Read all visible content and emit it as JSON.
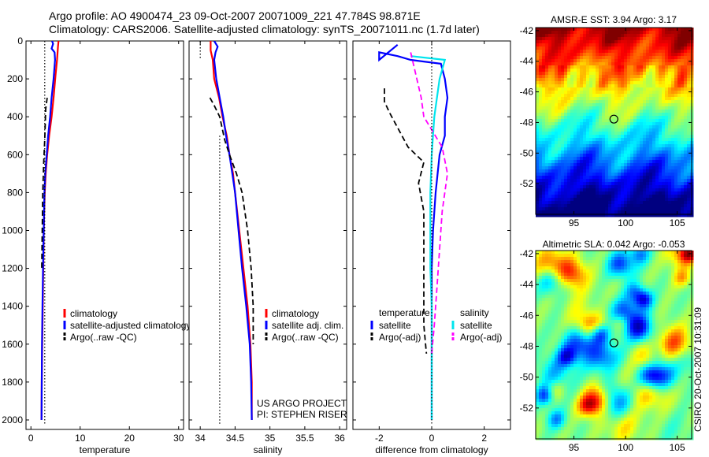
{
  "header": {
    "title_line1": "Argo profile: AO 4900474_23 09-Oct-2007 20071009_221 47.784S 98.871E",
    "title_line2": "Climatology: CARS2006. Satellite-adjusted climatology: synTS_20071011.nc (1.7d later)"
  },
  "footer": {
    "credit": "CSIRO 20-Oct-2007 10:31:09"
  },
  "colors": {
    "climatology": "#ff0000",
    "satellite": "#0000ff",
    "argo": "#000000",
    "satellite_diff_salinity": "#00e5ee",
    "argo_diff_salinity": "#ff00ff"
  },
  "chart_data": [
    {
      "type": "line",
      "id": "temperature",
      "xlabel": "temperature",
      "ylabel": "",
      "xlim": [
        -1,
        31
      ],
      "ylim": [
        2050,
        0
      ],
      "xticks": [
        0,
        10,
        20,
        30
      ],
      "yticks": [
        0,
        200,
        400,
        600,
        800,
        1000,
        1200,
        1400,
        1600,
        1800,
        2000
      ],
      "y_reversed": true,
      "legend": [
        "climatology",
        "satellite-adjusted climatology",
        "Argo(..raw -QC)"
      ],
      "legend_position": "lower-right",
      "series": [
        {
          "name": "climatology",
          "color": "#ff0000",
          "style": "solid",
          "points": [
            [
              5.6,
              0
            ],
            [
              5.5,
              30
            ],
            [
              5.3,
              100
            ],
            [
              5.0,
              180
            ],
            [
              4.6,
              300
            ],
            [
              4.2,
              400
            ],
            [
              3.7,
              500
            ],
            [
              3.3,
              600
            ],
            [
              3.0,
              700
            ],
            [
              2.8,
              800
            ],
            [
              2.6,
              1000
            ],
            [
              2.5,
              1200
            ],
            [
              2.4,
              1400
            ],
            [
              2.3,
              1600
            ],
            [
              2.2,
              1800
            ],
            [
              2.15,
              2000
            ]
          ]
        },
        {
          "name": "satellite-adjusted climatology",
          "color": "#0000ff",
          "style": "solid",
          "points": [
            [
              4.3,
              0
            ],
            [
              4.5,
              15
            ],
            [
              4.2,
              40
            ],
            [
              4.8,
              60
            ],
            [
              4.9,
              100
            ],
            [
              4.6,
              200
            ],
            [
              4.2,
              300
            ],
            [
              3.9,
              400
            ],
            [
              3.5,
              500
            ],
            [
              3.2,
              600
            ],
            [
              2.9,
              700
            ],
            [
              2.75,
              800
            ],
            [
              2.6,
              1000
            ],
            [
              2.45,
              1200
            ],
            [
              2.35,
              1400
            ],
            [
              2.25,
              1600
            ],
            [
              2.2,
              1800
            ],
            [
              2.15,
              2000
            ]
          ]
        },
        {
          "name": "Argo(..raw -QC)",
          "color": "#000000",
          "style": "dashed",
          "points": [
            [
              3.3,
              300
            ],
            [
              3.0,
              360
            ],
            [
              2.9,
              440
            ],
            [
              2.8,
              520
            ],
            [
              2.6,
              640
            ],
            [
              2.4,
              800
            ],
            [
              2.3,
              1000
            ],
            [
              2.2,
              1200
            ]
          ]
        },
        {
          "name": "",
          "color": "#000000",
          "style": "dotted",
          "points": [
            [
              2.8,
              0
            ],
            [
              2.8,
              2020
            ]
          ]
        }
      ]
    },
    {
      "type": "line",
      "id": "salinity",
      "xlabel": "salinity",
      "ylabel": "",
      "xlim": [
        33.84,
        36.1
      ],
      "ylim": [
        2050,
        0
      ],
      "xticks": [
        34,
        34.5,
        35,
        35.5,
        36
      ],
      "y_reversed": true,
      "legend": [
        "climatology",
        "satellite adj. clim.",
        "Argo(..raw -QC)"
      ],
      "legend_position": "lower-right",
      "annotations": [
        "US ARGO PROJECT",
        "PI: STEPHEN RISER"
      ],
      "series": [
        {
          "name": "climatology",
          "color": "#ff0000",
          "style": "solid",
          "points": [
            [
              34.15,
              0
            ],
            [
              34.15,
              50
            ],
            [
              34.18,
              100
            ],
            [
              34.2,
              200
            ],
            [
              34.27,
              300
            ],
            [
              34.32,
              400
            ],
            [
              34.38,
              500
            ],
            [
              34.42,
              600
            ],
            [
              34.47,
              700
            ],
            [
              34.5,
              800
            ],
            [
              34.56,
              1000
            ],
            [
              34.62,
              1200
            ],
            [
              34.68,
              1400
            ],
            [
              34.72,
              1600
            ],
            [
              34.74,
              1800
            ],
            [
              34.74,
              2000
            ]
          ]
        },
        {
          "name": "satellite adj. clim.",
          "color": "#0000ff",
          "style": "solid",
          "points": [
            [
              34.2,
              0
            ],
            [
              34.25,
              30
            ],
            [
              34.22,
              60
            ],
            [
              34.2,
              100
            ],
            [
              34.23,
              200
            ],
            [
              34.28,
              300
            ],
            [
              34.33,
              400
            ],
            [
              34.37,
              500
            ],
            [
              34.42,
              600
            ],
            [
              34.46,
              700
            ],
            [
              34.5,
              800
            ],
            [
              34.55,
              1000
            ],
            [
              34.6,
              1200
            ],
            [
              34.66,
              1400
            ],
            [
              34.71,
              1600
            ],
            [
              34.73,
              1800
            ],
            [
              34.74,
              2000
            ]
          ]
        },
        {
          "name": "Argo(..raw -QC)",
          "color": "#000000",
          "style": "dashed",
          "points": [
            [
              34.14,
              300
            ],
            [
              34.2,
              340
            ],
            [
              34.28,
              400
            ],
            [
              34.35,
              520
            ],
            [
              34.42,
              600
            ],
            [
              34.52,
              700
            ],
            [
              34.6,
              800
            ],
            [
              34.68,
              1000
            ],
            [
              34.73,
              1200
            ],
            [
              34.76,
              1400
            ],
            [
              34.76,
              1600
            ]
          ]
        },
        {
          "name": "",
          "color": "#000000",
          "style": "dotted",
          "points": [
            [
              34.0,
              0
            ],
            [
              34.0,
              100
            ]
          ]
        },
        {
          "name": "",
          "color": "#000000",
          "style": "dotted",
          "points": [
            [
              34.28,
              500
            ],
            [
              34.28,
              2020
            ]
          ]
        }
      ]
    },
    {
      "type": "line",
      "id": "difference",
      "xlabel": "difference from climatology",
      "ylabel": "",
      "xlim": [
        -3,
        3
      ],
      "ylim": [
        2050,
        0
      ],
      "xticks": [
        -2,
        0,
        2
      ],
      "y_reversed": true,
      "legend": [
        "temperature",
        "satellite",
        "Argo(-adj)",
        "salinity",
        "satellite",
        "Argo(-adj)"
      ],
      "legend_position": "lower-center",
      "series": [
        {
          "name": "satellite",
          "group": "temperature",
          "color": "#0000ff",
          "style": "solid",
          "points": [
            [
              -1.3,
              20
            ],
            [
              -2.0,
              100
            ],
            [
              -2.0,
              60
            ],
            [
              -1.3,
              80
            ],
            [
              -0.8,
              100
            ],
            [
              0.35,
              120
            ],
            [
              0.5,
              200
            ],
            [
              0.6,
              300
            ],
            [
              0.5,
              400
            ],
            [
              0.5,
              500
            ],
            [
              0.3,
              600
            ],
            [
              0.15,
              800
            ],
            [
              0.05,
              1000
            ],
            [
              0.0,
              1200
            ],
            [
              0.0,
              1600
            ],
            [
              0.0,
              2000
            ]
          ]
        },
        {
          "name": "Argo(-adj)",
          "group": "temperature",
          "color": "#000000",
          "style": "dashed",
          "points": [
            [
              -1.8,
              250
            ],
            [
              -1.8,
              320
            ],
            [
              -1.6,
              380
            ],
            [
              -0.9,
              560
            ],
            [
              -0.3,
              640
            ],
            [
              -0.5,
              750
            ],
            [
              -0.3,
              900
            ],
            [
              -0.3,
              1200
            ],
            [
              -0.3,
              1500
            ],
            [
              -0.2,
              1650
            ]
          ]
        },
        {
          "name": "satellite",
          "group": "salinity",
          "color": "#00e5ee",
          "style": "solid",
          "points": [
            [
              -0.8,
              80
            ],
            [
              0.5,
              100
            ],
            [
              0.3,
              200
            ],
            [
              0.1,
              400
            ],
            [
              0.0,
              600
            ],
            [
              -0.05,
              800
            ],
            [
              -0.05,
              1000
            ],
            [
              -0.05,
              1200
            ],
            [
              0.0,
              1400
            ],
            [
              0.0,
              1600
            ],
            [
              0.0,
              2000
            ]
          ]
        },
        {
          "name": "Argo(-adj)",
          "group": "salinity",
          "color": "#ff00ff",
          "style": "dashed",
          "points": [
            [
              -0.8,
              60
            ],
            [
              -0.4,
              300
            ],
            [
              -0.3,
              400
            ],
            [
              0.4,
              560
            ],
            [
              0.6,
              700
            ],
            [
              0.4,
              900
            ],
            [
              0.3,
              1100
            ],
            [
              0.2,
              1300
            ],
            [
              0.1,
              1500
            ],
            [
              0.0,
              1650
            ]
          ]
        },
        {
          "name": "",
          "color": "#000000",
          "style": "dotted",
          "points": [
            [
              0,
              0
            ],
            [
              0,
              2020
            ]
          ]
        }
      ]
    },
    {
      "type": "heatmap",
      "id": "sst-map",
      "title": "AMSR-E SST: 3.94 Argo: 3.17",
      "xlim": [
        91.3,
        106.4
      ],
      "ylim": [
        -54,
        -41.8
      ],
      "xticks": [
        95,
        100,
        105
      ],
      "yticks": [
        -42,
        -44,
        -46,
        -48,
        -50,
        -52
      ],
      "colormap": "jet",
      "marker": {
        "lon": 98.87,
        "lat": -47.78
      }
    },
    {
      "type": "heatmap",
      "id": "sla-map",
      "title": "Altimetric SLA: 0.042 Argo: -0.053",
      "xlim": [
        91.3,
        106.4
      ],
      "ylim": [
        -54,
        -41.8
      ],
      "xticks": [
        95,
        100,
        105
      ],
      "yticks": [
        -42,
        -44,
        -46,
        -48,
        -50,
        -52
      ],
      "colormap": "jet",
      "marker": {
        "lon": 98.87,
        "lat": -47.78
      }
    }
  ]
}
